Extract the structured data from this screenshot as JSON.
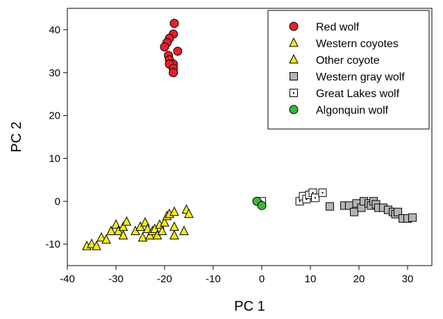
{
  "chart_data": {
    "type": "scatter",
    "title": "",
    "xlabel": "PC 1",
    "ylabel": "PC 2",
    "xlim": [
      -40,
      35
    ],
    "ylim": [
      -15,
      45
    ],
    "xticks": [
      -40,
      -30,
      -20,
      -10,
      0,
      10,
      20,
      30
    ],
    "yticks": [
      -10,
      0,
      10,
      20,
      30,
      40
    ],
    "grid": false,
    "legend_position": "top-right",
    "series": [
      {
        "name": "Red wolf",
        "marker": "circle",
        "color": "#e8202a",
        "points": [
          [
            -18.0,
            41.5
          ],
          [
            -18.2,
            39.0
          ],
          [
            -19.0,
            38.0
          ],
          [
            -19.5,
            37.0
          ],
          [
            -20.0,
            36.0
          ],
          [
            -17.3,
            35.0
          ],
          [
            -19.2,
            34.0
          ],
          [
            -19.0,
            33.0
          ],
          [
            -18.2,
            32.0
          ],
          [
            -19.0,
            32.0
          ],
          [
            -18.2,
            31.0
          ],
          [
            -18.2,
            30.0
          ]
        ]
      },
      {
        "name": "Western coyotes",
        "marker": "triangle",
        "color": "#f5ea1e",
        "points": [
          [
            -36.0,
            -10.5
          ],
          [
            -35.0,
            -10.0
          ],
          [
            -34.0,
            -10.5
          ],
          [
            -33.0,
            -8.5
          ],
          [
            -32.0,
            -9.0
          ],
          [
            -31.0,
            -7.0
          ],
          [
            -30.0,
            -5.5
          ],
          [
            -29.5,
            -7.0
          ],
          [
            -28.5,
            -6.0
          ],
          [
            -28.5,
            -8.0
          ],
          [
            -27.8,
            -4.8
          ]
        ]
      },
      {
        "name": "Other coyote",
        "marker": "triangle",
        "color": "#f5ea1e",
        "points": [
          [
            -26.0,
            -7.0
          ],
          [
            -25.0,
            -6.0
          ],
          [
            -24.5,
            -8.5
          ],
          [
            -24.0,
            -5.0
          ],
          [
            -23.5,
            -6.5
          ],
          [
            -23.0,
            -8.0
          ],
          [
            -22.5,
            -7.0
          ],
          [
            -22.0,
            -6.5
          ],
          [
            -21.5,
            -8.0
          ],
          [
            -21.0,
            -5.5
          ],
          [
            -20.5,
            -7.0
          ],
          [
            -20.0,
            -5.0
          ],
          [
            -19.5,
            -3.5
          ],
          [
            -19.0,
            -3.0
          ],
          [
            -18.0,
            -2.5
          ],
          [
            -18.0,
            -6.0
          ],
          [
            -18.0,
            -8.0
          ],
          [
            -16.0,
            -7.0
          ],
          [
            -15.5,
            -2.0
          ],
          [
            -15.0,
            -3.0
          ]
        ]
      },
      {
        "name": "Western gray wolf",
        "marker": "square",
        "color": "#b4b4b4",
        "points": [
          [
            14.0,
            -1.2
          ],
          [
            17.0,
            -1.0
          ],
          [
            18.0,
            -1.0
          ],
          [
            19.0,
            -2.5
          ],
          [
            19.5,
            -0.5
          ],
          [
            20.5,
            -1.5
          ],
          [
            21.0,
            0.0
          ],
          [
            22.0,
            -0.5
          ],
          [
            22.5,
            -1.0
          ],
          [
            23.0,
            0.0
          ],
          [
            23.5,
            -0.7
          ],
          [
            24.0,
            -1.5
          ],
          [
            25.0,
            -1.5
          ],
          [
            26.0,
            -2.0
          ],
          [
            27.0,
            -2.5
          ],
          [
            27.5,
            -3.0
          ],
          [
            28.0,
            -2.5
          ],
          [
            29.0,
            -4.0
          ],
          [
            30.0,
            -4.0
          ],
          [
            31.0,
            -3.8
          ]
        ]
      },
      {
        "name": "Great Lakes wolf",
        "marker": "square-dot",
        "color": "#ffffff",
        "points": [
          [
            0.0,
            0.0
          ],
          [
            7.8,
            0.0
          ],
          [
            8.5,
            1.2
          ],
          [
            9.2,
            0.5
          ],
          [
            9.8,
            1.5
          ],
          [
            10.5,
            2.0
          ],
          [
            11.0,
            0.8
          ],
          [
            12.5,
            2.0
          ]
        ]
      },
      {
        "name": "Algonquin wolf",
        "marker": "circle",
        "color": "#3cb43c",
        "points": [
          [
            -1.0,
            0.0
          ],
          [
            0.0,
            -1.0
          ]
        ]
      }
    ]
  }
}
